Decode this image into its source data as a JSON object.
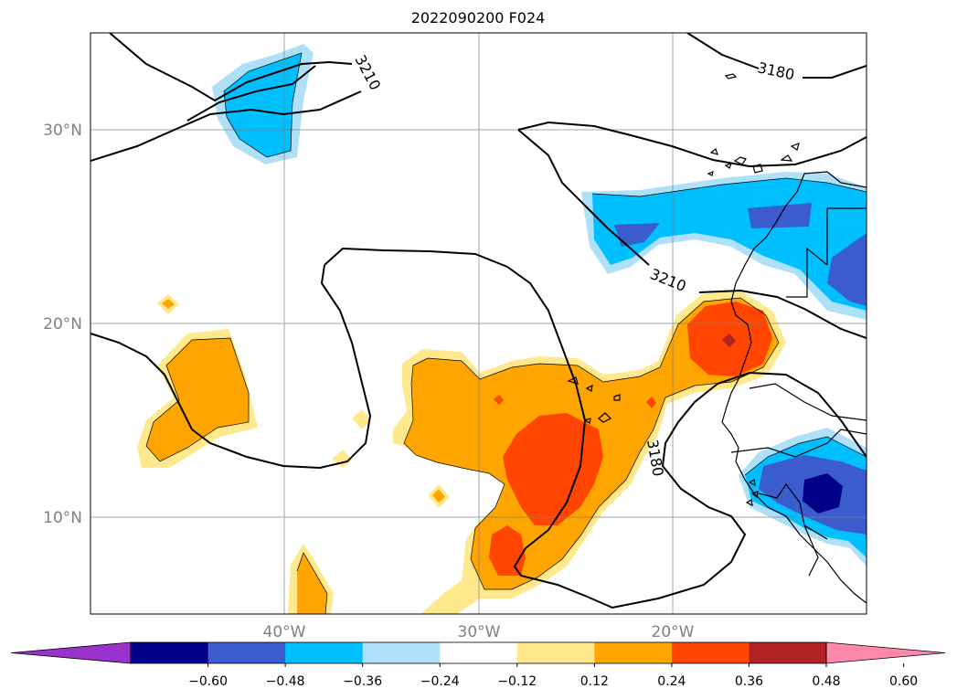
{
  "title": "2022090200 F024",
  "lat_labels": [
    "30°N",
    "20°N",
    "10°N"
  ],
  "lon_labels": [
    "40°W",
    "30°W",
    "20°W"
  ],
  "contour_labels": [
    "3210",
    "3180",
    "3210",
    "3180"
  ],
  "colorbar": {
    "colors": [
      "#9933cc",
      "#000088",
      "#3a5ccc",
      "#00bfff",
      "#aee1f8",
      "#ffffff",
      "#ffe98c",
      "#ffa500",
      "#ff4500",
      "#b22222",
      "#ff88aa"
    ],
    "tick_labels": [
      "−0.60",
      "−0.48",
      "−0.36",
      "−0.24",
      "−0.12",
      "0.12",
      "0.24",
      "0.36",
      "0.48",
      "0.60"
    ]
  },
  "map": {
    "lon_range": [
      -50,
      -10
    ],
    "lat_range": [
      5,
      35
    ],
    "gridlines": true,
    "grid_lons": [
      -40,
      -30,
      -20
    ],
    "grid_lats": [
      30,
      20,
      10
    ]
  }
}
